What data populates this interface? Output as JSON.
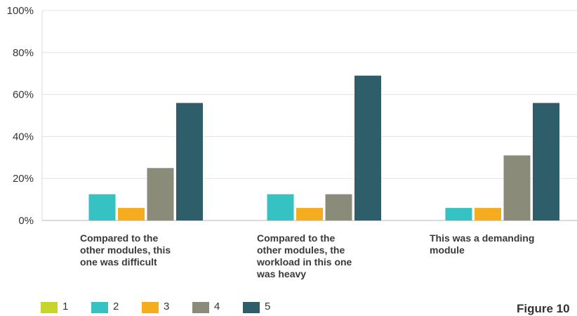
{
  "chart_data": {
    "type": "bar",
    "categories": [
      "Compared to the\nother modules, this\none was difficult",
      "Compared to the\nother modules, the\nworkload in this one\nwas heavy",
      "This was a demanding\nmodule"
    ],
    "series": [
      {
        "name": "1",
        "color": "#c8d42e",
        "values": [
          0,
          0,
          0
        ]
      },
      {
        "name": "2",
        "color": "#36c2c2",
        "values": [
          12.5,
          12.5,
          6
        ]
      },
      {
        "name": "3",
        "color": "#f5ac1e",
        "values": [
          6,
          6,
          6
        ]
      },
      {
        "name": "4",
        "color": "#8a8b78",
        "values": [
          25,
          12.5,
          31
        ]
      },
      {
        "name": "5",
        "color": "#2f5e6b",
        "values": [
          56,
          69,
          56
        ]
      }
    ],
    "y_ticks": [
      "0%",
      "20%",
      "40%",
      "60%",
      "80%",
      "100%"
    ],
    "ylim": [
      0,
      100
    ],
    "grid": true,
    "legend_position": "bottom-left",
    "title": "",
    "xlabel": "",
    "ylabel": ""
  },
  "caption": "Figure 10"
}
